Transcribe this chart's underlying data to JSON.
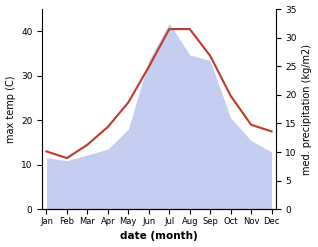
{
  "months": [
    "Jan",
    "Feb",
    "Mar",
    "Apr",
    "May",
    "Jun",
    "Jul",
    "Aug",
    "Sep",
    "Oct",
    "Nov",
    "Dec"
  ],
  "month_indices": [
    0,
    1,
    2,
    3,
    4,
    5,
    6,
    7,
    8,
    9,
    10,
    11
  ],
  "temperature": [
    13.0,
    11.5,
    14.5,
    18.5,
    24.0,
    32.0,
    40.5,
    40.5,
    34.5,
    25.5,
    19.0,
    17.5
  ],
  "precipitation": [
    9.0,
    8.5,
    9.5,
    10.5,
    14.0,
    26.0,
    32.5,
    27.0,
    26.0,
    16.0,
    12.0,
    10.0
  ],
  "temp_color": "#c0392b",
  "precip_color": "#c5cef0",
  "left_ylabel": "max temp (C)",
  "right_ylabel": "med. precipitation (kg/m2)",
  "xlabel": "date (month)",
  "ylim_left": [
    0,
    45
  ],
  "ylim_right": [
    0,
    35
  ],
  "yticks_left": [
    0,
    10,
    20,
    30,
    40
  ],
  "yticks_right": [
    0,
    5,
    10,
    15,
    20,
    25,
    30,
    35
  ],
  "background_color": "#ffffff",
  "fig_width": 3.18,
  "fig_height": 2.47,
  "dpi": 100
}
